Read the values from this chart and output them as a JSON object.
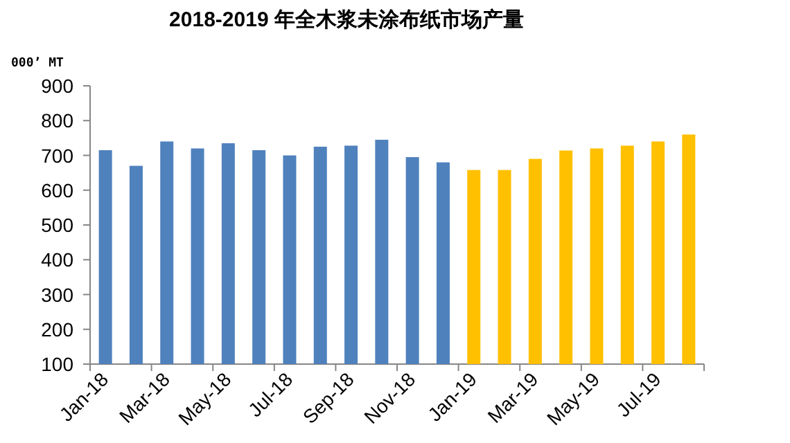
{
  "chart_data": {
    "type": "bar",
    "title": "2018-2019 年全木浆未涂布纸市场产量",
    "ylabel": "000’ MT",
    "categories": [
      "Jan-18",
      null,
      "Mar-18",
      null,
      "May-18",
      null,
      "Jul-18",
      null,
      "Sep-18",
      null,
      "Nov-18",
      null,
      "Jan-19",
      null,
      "Mar-19",
      null,
      "May-19",
      null,
      "Jul-19",
      null
    ],
    "values": [
      715,
      670,
      740,
      720,
      735,
      715,
      700,
      725,
      728,
      745,
      695,
      680,
      658,
      658,
      690,
      714,
      720,
      728,
      740,
      760
    ],
    "colors": [
      "#4f81bd",
      "#4f81bd",
      "#4f81bd",
      "#4f81bd",
      "#4f81bd",
      "#4f81bd",
      "#4f81bd",
      "#4f81bd",
      "#4f81bd",
      "#4f81bd",
      "#4f81bd",
      "#4f81bd",
      "#ffc000",
      "#ffc000",
      "#ffc000",
      "#ffc000",
      "#ffc000",
      "#ffc000",
      "#ffc000",
      "#ffc000"
    ],
    "ylim": [
      100,
      900
    ],
    "yticks": [
      100,
      200,
      300,
      400,
      500,
      600,
      700,
      800,
      900
    ]
  }
}
